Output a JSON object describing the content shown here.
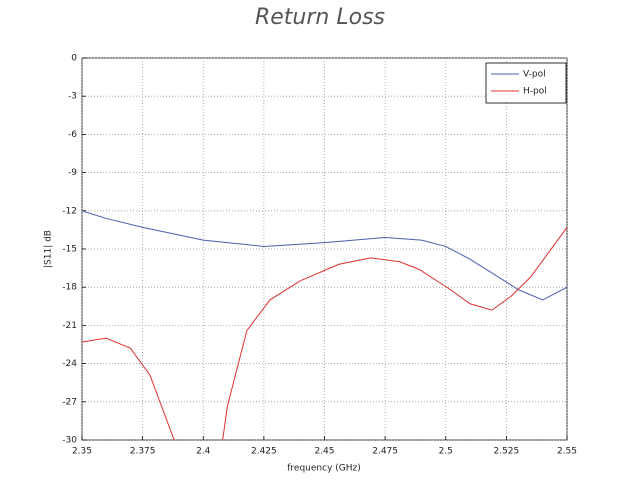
{
  "chart_data": {
    "type": "line",
    "title": "Return Loss",
    "x_label": "frequency (GHz)",
    "y_label": "|S11| dB",
    "xlim": [
      2.35,
      2.55
    ],
    "ylim": [
      -30,
      0
    ],
    "xticks": [
      2.35,
      2.375,
      2.4,
      2.425,
      2.45,
      2.475,
      2.5,
      2.525,
      2.55
    ],
    "yticks": [
      0,
      -3,
      -6,
      -9,
      -12,
      -15,
      -18,
      -21,
      -24,
      -27,
      -30
    ],
    "grid": true,
    "legend": "upper right",
    "series": [
      {
        "name": "V-pol",
        "color": "#4a5fb0",
        "x": [
          2.35,
          2.36,
          2.375,
          2.4,
          2.425,
          2.45,
          2.475,
          2.49,
          2.5,
          2.51,
          2.52,
          2.53,
          2.54,
          2.55
        ],
        "values": [
          -12,
          -12.6,
          -13.3,
          -14.3,
          -14.8,
          -14.5,
          -14.1,
          -14.3,
          -14.8,
          -15.8,
          -17.0,
          -18.2,
          -19.0,
          -18.0
        ]
      },
      {
        "name": "H-pol",
        "color": "#e03030",
        "x": [
          2.35,
          2.36,
          2.37,
          2.378,
          2.388,
          2.398,
          2.408,
          2.41,
          2.418,
          2.4275,
          2.44,
          2.456,
          2.469,
          2.481,
          2.489,
          2.502,
          2.51,
          2.519,
          2.527,
          2.535,
          2.55
        ],
        "values": [
          -22.3,
          -22.0,
          -22.8,
          -24.9,
          -30,
          null,
          -30,
          -27.3,
          -21.4,
          -19.0,
          -17.5,
          -16.2,
          -15.7,
          -16.0,
          -16.6,
          -18.2,
          -19.3,
          -19.8,
          -18.7,
          -17.2,
          -13.3
        ]
      }
    ]
  }
}
